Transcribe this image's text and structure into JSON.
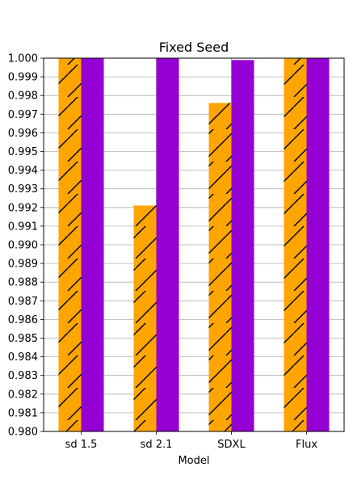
{
  "chart_data": {
    "type": "bar",
    "title": "Fixed Seed",
    "xlabel": "Model",
    "ylabel": "",
    "categories": [
      "sd 1.5",
      "sd 2.1",
      "SDXL",
      "Flux"
    ],
    "ylim": [
      0.98,
      1.0
    ],
    "yticks": [
      "0.980",
      "0.981",
      "0.982",
      "0.983",
      "0.984",
      "0.985",
      "0.986",
      "0.987",
      "0.988",
      "0.989",
      "0.990",
      "0.991",
      "0.992",
      "0.993",
      "0.994",
      "0.995",
      "0.996",
      "0.997",
      "0.998",
      "0.999",
      "1.000"
    ],
    "grid": true,
    "legend": "none",
    "series": [
      {
        "color": "#ffa500",
        "hatch": "diagonal",
        "values": [
          1.0,
          0.9921,
          0.9976,
          1.0
        ]
      },
      {
        "color": "#9400d3",
        "hatch": "none",
        "values": [
          1.0,
          1.0,
          0.9999,
          1.0
        ]
      }
    ]
  }
}
